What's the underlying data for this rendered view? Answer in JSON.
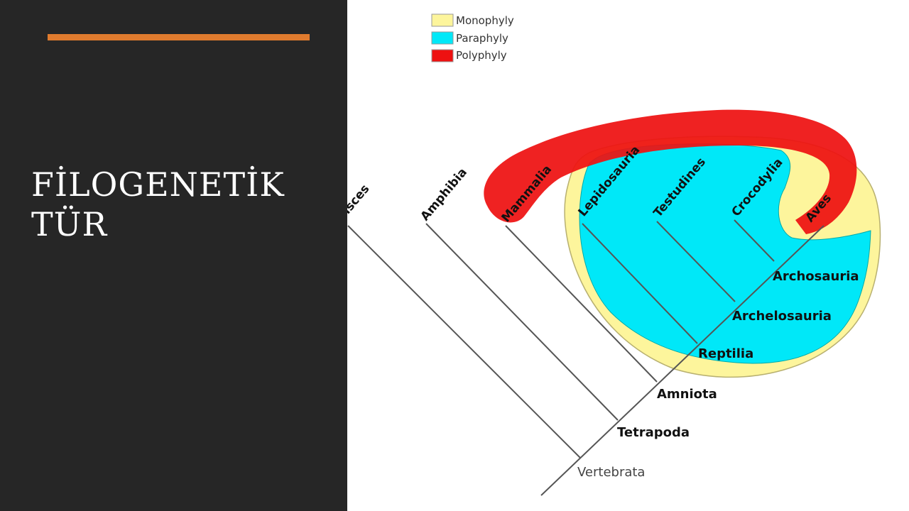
{
  "slide": {
    "title_line1": "FİLOGENETİK",
    "title_line2": "TÜR",
    "accent_color": "#e07b2e",
    "panel_color": "#262626"
  },
  "legend": [
    {
      "label": "Monophyly",
      "color": "#fdf59c"
    },
    {
      "label": "Paraphyly",
      "color": "#00e8f8"
    },
    {
      "label": "Polyphyly",
      "color": "#ee1111"
    }
  ],
  "taxa": {
    "pisces": "Pisces",
    "amphibia": "Amphibia",
    "mammalia": "Mammalia",
    "lepidosauria": "Lepidosauria",
    "testudines": "Testudines",
    "crocodylia": "Crocodylia",
    "aves": "Aves"
  },
  "clades": {
    "archosauria": "Archosauria",
    "archelosauria": "Archelosauria",
    "reptilia": "Reptilia",
    "amniota": "Amniota",
    "tetrapoda": "Tetrapoda",
    "vertebrata": "Vertebrata"
  }
}
